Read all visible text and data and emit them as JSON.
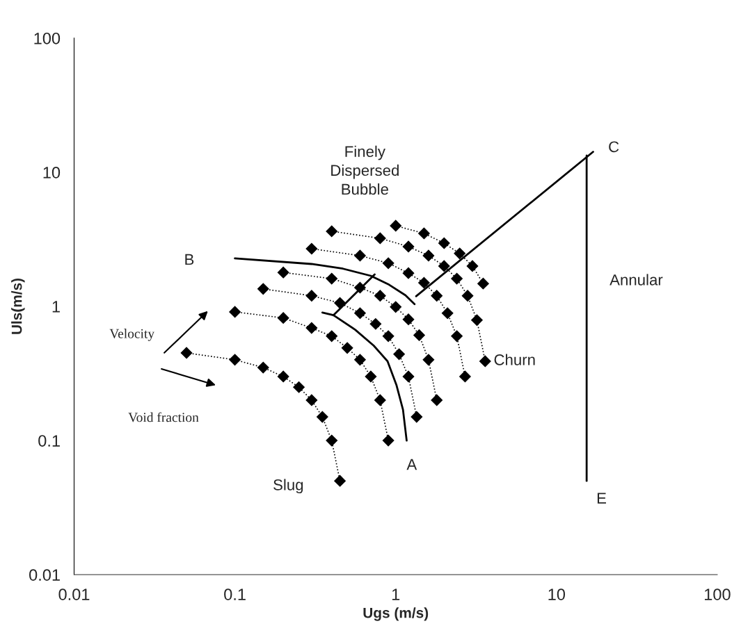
{
  "chart_data": {
    "type": "line",
    "xlabel": "Ugs (m/s)",
    "ylabel": "Uls(m/s)",
    "log": "xy",
    "xlim": [
      0.01,
      100
    ],
    "ylim": [
      0.01,
      100
    ],
    "xticks": [
      0.01,
      0.1,
      1,
      10,
      100
    ],
    "yticks": [
      0.01,
      0.1,
      1,
      10,
      100
    ],
    "grid": false,
    "legend": false,
    "series": [
      {
        "color": "#000000",
        "marker": "diamond",
        "line_style": "dotted",
        "x": [
          0.05,
          0.1,
          0.15,
          0.2,
          0.25,
          0.3,
          0.35,
          0.4,
          0.45
        ],
        "values": [
          0.45,
          0.4,
          0.35,
          0.3,
          0.25,
          0.2,
          0.15,
          0.1,
          0.05
        ]
      },
      {
        "color": "#000000",
        "marker": "diamond",
        "line_style": "dotted",
        "x": [
          0.1,
          0.2,
          0.3,
          0.4,
          0.5,
          0.6,
          0.7,
          0.8,
          0.9
        ],
        "values": [
          0.91,
          0.82,
          0.69,
          0.6,
          0.49,
          0.4,
          0.3,
          0.2,
          0.1
        ]
      },
      {
        "color": "#000000",
        "marker": "diamond",
        "line_style": "dotted",
        "x": [
          0.15,
          0.3,
          0.45,
          0.6,
          0.75,
          0.9,
          1.05,
          1.2,
          1.35
        ],
        "values": [
          1.35,
          1.2,
          1.06,
          0.89,
          0.74,
          0.6,
          0.44,
          0.3,
          0.15
        ]
      },
      {
        "color": "#000000",
        "marker": "diamond",
        "line_style": "dotted",
        "x": [
          0.2,
          0.4,
          0.6,
          0.8,
          1.0,
          1.2,
          1.4,
          1.6,
          1.8
        ],
        "values": [
          1.79,
          1.61,
          1.38,
          1.2,
          0.99,
          0.8,
          0.61,
          0.4,
          0.2
        ]
      },
      {
        "color": "#000000",
        "marker": "diamond",
        "line_style": "dotted",
        "x": [
          0.3,
          0.6,
          0.9,
          1.2,
          1.5,
          1.8,
          2.1,
          2.4,
          2.7
        ],
        "values": [
          2.69,
          2.39,
          2.1,
          1.77,
          1.5,
          1.2,
          0.89,
          0.6,
          0.3
        ]
      },
      {
        "color": "#000000",
        "marker": "diamond",
        "line_style": "dotted",
        "x": [
          0.4,
          0.8,
          1.2,
          1.6,
          2.0,
          2.4,
          2.8,
          3.2,
          3.6
        ],
        "values": [
          3.63,
          3.22,
          2.79,
          2.39,
          2.0,
          1.61,
          1.2,
          0.79,
          0.39
        ]
      },
      {
        "color": "#000000",
        "marker": "diamond",
        "line_style": "dotted",
        "x": [
          1.0,
          1.5,
          2.0,
          2.5,
          3.0,
          3.5
        ],
        "values": [
          3.99,
          3.5,
          2.96,
          2.48,
          2.0,
          1.48
        ]
      },
      {
        "color": "#000000",
        "marker": "none",
        "line_style": "solid",
        "x": [
          0.1,
          0.3,
          0.47,
          0.7,
          0.91,
          1.15,
          1.31
        ],
        "values": [
          2.28,
          2.07,
          1.91,
          1.69,
          1.45,
          1.21,
          1.04
        ]
      },
      {
        "color": "#000000",
        "marker": "none",
        "line_style": "solid",
        "x": [
          0.35,
          0.41,
          0.56,
          0.73,
          0.89,
          1.01,
          1.11,
          1.17
        ],
        "values": [
          0.9,
          0.86,
          0.67,
          0.51,
          0.39,
          0.26,
          0.17,
          0.1
        ]
      },
      {
        "color": "#000000",
        "marker": "none",
        "line_style": "solid",
        "x": [
          0.41,
          0.74
        ],
        "values": [
          0.86,
          1.73
        ]
      },
      {
        "color": "#000000",
        "marker": "none",
        "line_style": "solid",
        "x": [
          1.34,
          16.9
        ],
        "values": [
          1.19,
          14.2
        ]
      },
      {
        "color": "#000000",
        "marker": "none",
        "line_style": "solid",
        "x": [
          15.4,
          15.4
        ],
        "values": [
          13.3,
          0.05
        ]
      }
    ],
    "annotations": [
      "Finely\nDispersed\nBubble",
      "B",
      "C",
      "A",
      "E",
      "Slug",
      "Churn",
      "Annular",
      "Velocity",
      "Void fraction"
    ]
  }
}
